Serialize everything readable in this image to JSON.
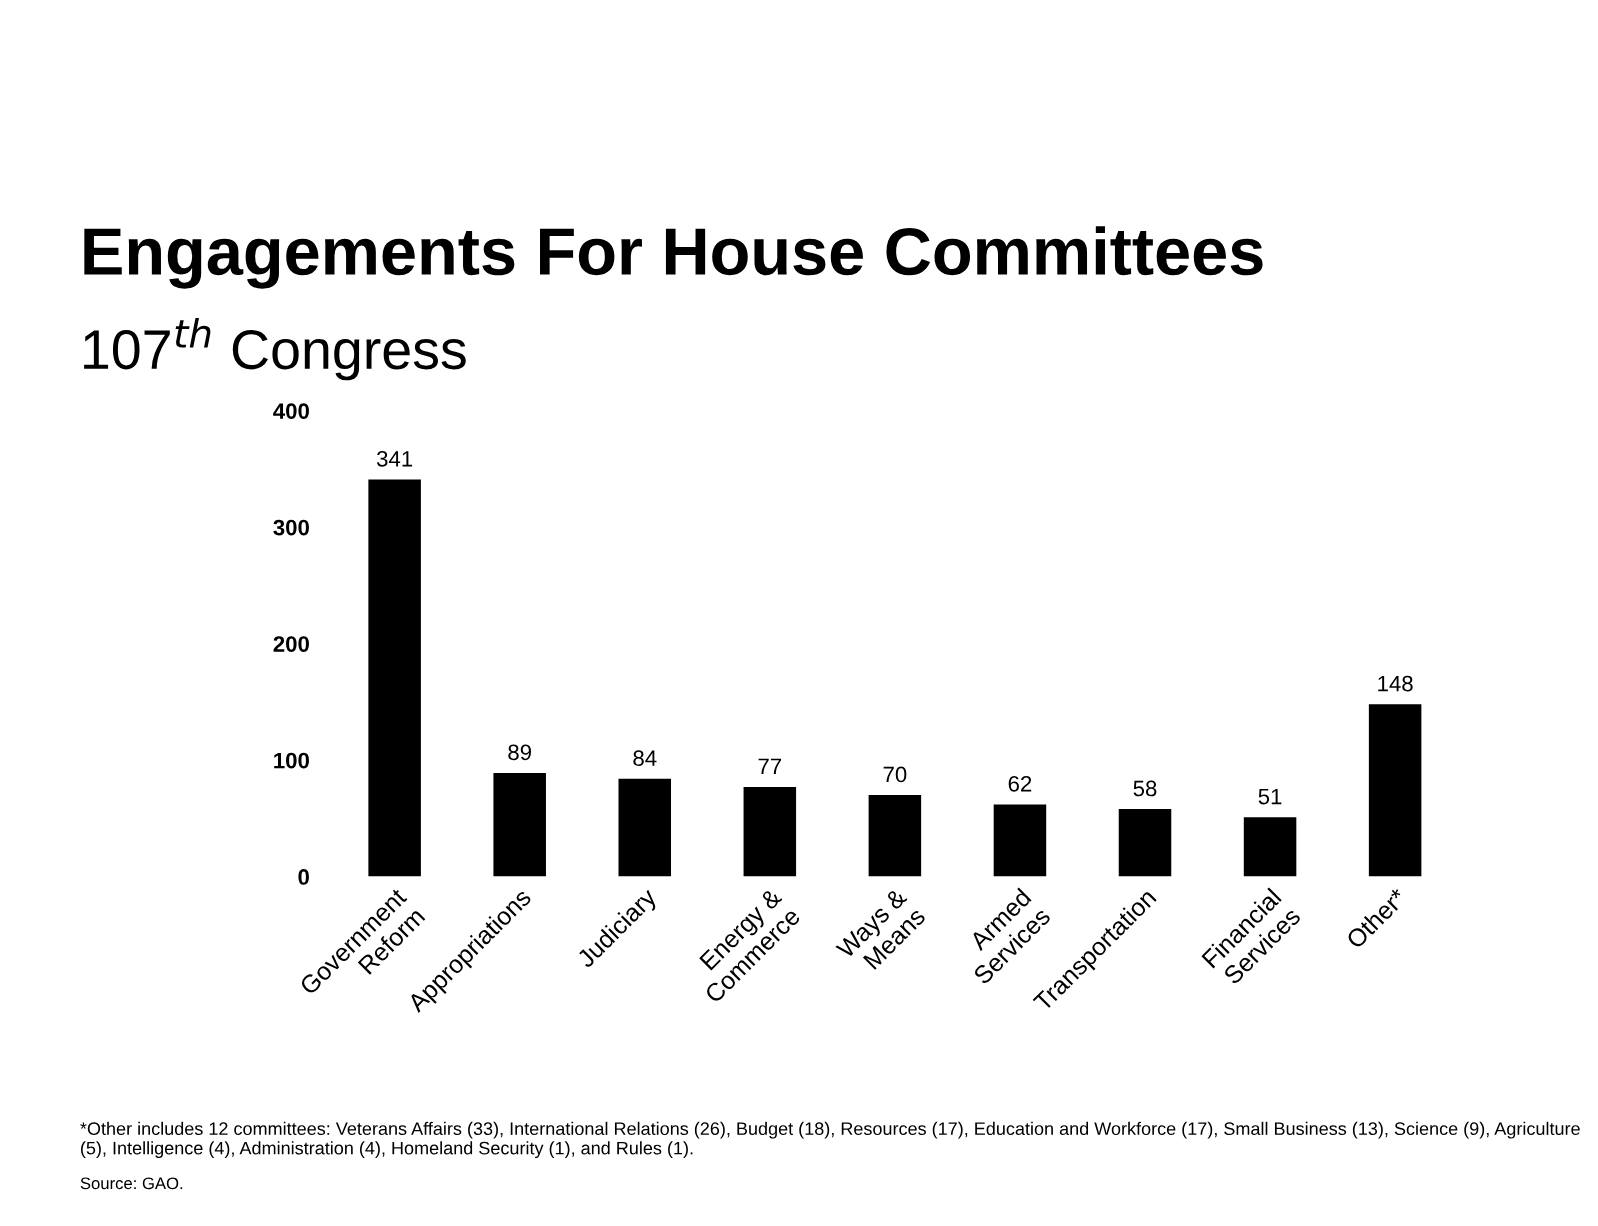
{
  "chart_data": {
    "type": "bar",
    "title": "Engagements For House Committees",
    "subtitle": "107$^{th}$ Congress",
    "categories": [
      "Government\nReform",
      "Appropriations",
      "Judiciary",
      "Energy &\nCommerce",
      "Ways &\nMeans",
      "Armed\nServices",
      "Transportation",
      "Financial\nServices",
      "Other*"
    ],
    "values": [
      341,
      89,
      84,
      77,
      70,
      62,
      58,
      51,
      148
    ],
    "color": "#000000",
    "ylim": [
      0,
      400
    ],
    "yticks": [
      0,
      100,
      200,
      300,
      400
    ],
    "grid": false,
    "data_labels": true,
    "annotations": [
      "*Other includes 12 committees: Veterans Affairs (33), International Relations (26), Budget (18), Resources (17), Education and Workforce (17), Small Business (13), Science (9), Agriculture (5), Intelligence (4), Administration (4), Homeland Security (1), and Rules (1).",
      "Source: GAO."
    ]
  }
}
